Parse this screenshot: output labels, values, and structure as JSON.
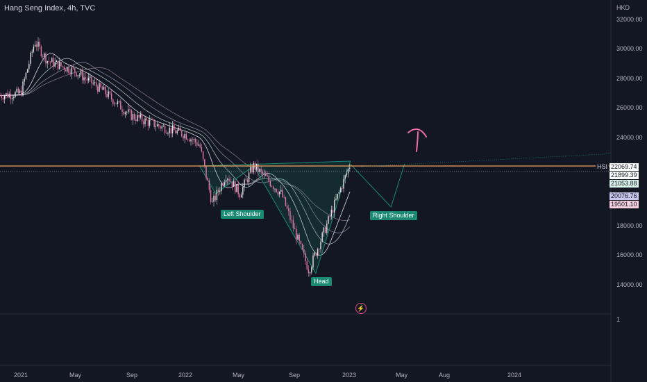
{
  "header": {
    "title": "Hang Seng Index, 4h, TVC"
  },
  "price_axis": {
    "currency": "HKD",
    "ticks": [
      "32000.00",
      "30000.00",
      "28000.00",
      "26000.00",
      "24000.00",
      "18000.00",
      "16000.00",
      "14000.00"
    ]
  },
  "time_axis": {
    "ticks": [
      "2021",
      "May",
      "Sep",
      "2022",
      "May",
      "Sep",
      "2023",
      "May",
      "Aug",
      "2024"
    ]
  },
  "price_tags": [
    {
      "label": "HSI",
      "color": "#d1d4dc",
      "background": "#131722"
    },
    {
      "label": "22069.74",
      "color": "#131722",
      "background": "#ffffff"
    },
    {
      "label": "21899.39",
      "color": "#131722",
      "background": "#ffffff"
    },
    {
      "label": "21053.88",
      "color": "#131722",
      "background": "#d8f2ea"
    },
    {
      "label": "20076.76",
      "color": "#131722",
      "background": "#c9c7ec"
    },
    {
      "label": "19501.10",
      "color": "#131722",
      "background": "#f3cfde"
    }
  ],
  "pattern_labels": {
    "left_shoulder": "Left Shoulder",
    "head": "Head",
    "right_shoulder": "Right Shoulder"
  },
  "sub_pane": {
    "scale_label": "1"
  },
  "colors": {
    "background": "#131722",
    "candle_up": "#e0e0e0",
    "candle_down": "#e879a8",
    "neckline": "#f5a35c",
    "pattern": "#1b8a72",
    "arrow": "#f06ca6"
  },
  "chart_data": {
    "type": "line",
    "title": "Hang Seng Index, 4h, TVC",
    "ylim": [
      13000,
      33000
    ],
    "x": [
      "2021-01",
      "2021-02",
      "2021-03",
      "2021-05",
      "2021-07",
      "2021-09",
      "2021-11",
      "2022-01",
      "2022-02",
      "2022-03",
      "2022-04",
      "2022-05",
      "2022-06",
      "2022-08",
      "2022-10",
      "2022-11",
      "2022-12",
      "2023-01"
    ],
    "series": [
      {
        "values": [
          27000,
          30500,
          29200,
          28500,
          27200,
          25500,
          24800,
          24200,
          23500,
          19500,
          21500,
          20200,
          22100,
          20200,
          15000,
          17400,
          19800,
          22200
        ]
      }
    ],
    "neckline": 22069.74,
    "projection": [
      {
        "x": "2023-01",
        "y": 22200
      },
      {
        "x": "2023-04",
        "y": 19300
      },
      {
        "x": "2023-05",
        "y": 22200
      }
    ]
  }
}
